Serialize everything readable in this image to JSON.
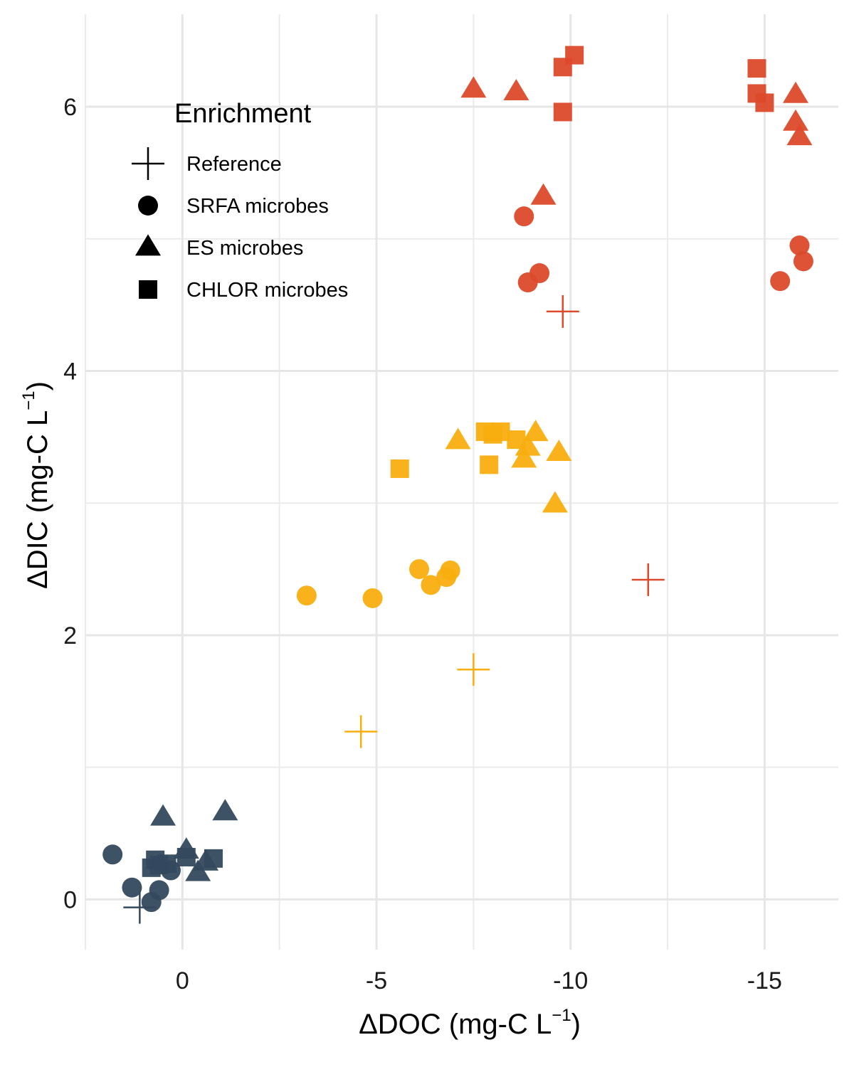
{
  "chart_data": {
    "type": "scatter",
    "xlabel": "ΔDOC (mg-C L",
    "xlabel_superscript": "−1",
    "xlabel_suffix": ")",
    "ylabel": "ΔDIC (mg-C L",
    "ylabel_superscript": "−1",
    "ylabel_suffix": ")",
    "x_axis_reversed": true,
    "xlim": [
      2.5,
      -16.9
    ],
    "ylim": [
      -0.38,
      6.7
    ],
    "x_ticks": [
      0,
      -5,
      -10,
      -15
    ],
    "x_tick_labels": [
      "0",
      "-5",
      "-10",
      "-15"
    ],
    "y_ticks": [
      0,
      2,
      4,
      6
    ],
    "y_tick_labels": [
      "0",
      "2",
      "4",
      "6"
    ],
    "grid": true,
    "legend": {
      "title": "Enrichment",
      "placement": "top-left",
      "entries": [
        {
          "label": "Reference",
          "shape": "cross"
        },
        {
          "label": "SRFA microbes",
          "shape": "circle"
        },
        {
          "label": "ES microbes",
          "shape": "triangle"
        },
        {
          "label": "CHLOR microbes",
          "shape": "square"
        }
      ]
    },
    "group_colors": {
      "dark": "#34495e",
      "yellow": "#f9ae0f",
      "red": "#dc4a2b"
    },
    "points": [
      {
        "x": 1.8,
        "y": 0.34,
        "shape": "circle",
        "color": "dark"
      },
      {
        "x": 1.3,
        "y": 0.09,
        "shape": "circle",
        "color": "dark"
      },
      {
        "x": 0.8,
        "y": -0.02,
        "shape": "circle",
        "color": "dark"
      },
      {
        "x": 0.6,
        "y": 0.07,
        "shape": "circle",
        "color": "dark"
      },
      {
        "x": 0.3,
        "y": 0.22,
        "shape": "circle",
        "color": "dark"
      },
      {
        "x": 1.1,
        "y": -0.06,
        "shape": "cross",
        "color": "dark"
      },
      {
        "x": 0.5,
        "y": 0.62,
        "shape": "triangle",
        "color": "dark"
      },
      {
        "x": -1.1,
        "y": 0.66,
        "shape": "triangle",
        "color": "dark"
      },
      {
        "x": -0.1,
        "y": 0.37,
        "shape": "triangle",
        "color": "dark"
      },
      {
        "x": -0.6,
        "y": 0.28,
        "shape": "triangle",
        "color": "dark"
      },
      {
        "x": -0.4,
        "y": 0.2,
        "shape": "triangle",
        "color": "dark"
      },
      {
        "x": 0.8,
        "y": 0.24,
        "shape": "square",
        "color": "dark"
      },
      {
        "x": 0.7,
        "y": 0.3,
        "shape": "square",
        "color": "dark"
      },
      {
        "x": 0.6,
        "y": 0.26,
        "shape": "square",
        "color": "dark"
      },
      {
        "x": 0.4,
        "y": 0.27,
        "shape": "square",
        "color": "dark"
      },
      {
        "x": -0.1,
        "y": 0.32,
        "shape": "square",
        "color": "dark"
      },
      {
        "x": -0.8,
        "y": 0.31,
        "shape": "square",
        "color": "dark"
      },
      {
        "x": -3.2,
        "y": 2.3,
        "shape": "circle",
        "color": "yellow"
      },
      {
        "x": -4.9,
        "y": 2.28,
        "shape": "circle",
        "color": "yellow"
      },
      {
        "x": -6.1,
        "y": 2.5,
        "shape": "circle",
        "color": "yellow"
      },
      {
        "x": -6.4,
        "y": 2.38,
        "shape": "circle",
        "color": "yellow"
      },
      {
        "x": -6.8,
        "y": 2.44,
        "shape": "circle",
        "color": "yellow"
      },
      {
        "x": -6.9,
        "y": 2.49,
        "shape": "circle",
        "color": "yellow"
      },
      {
        "x": -4.6,
        "y": 1.27,
        "shape": "cross",
        "color": "yellow"
      },
      {
        "x": -7.5,
        "y": 1.74,
        "shape": "cross",
        "color": "yellow"
      },
      {
        "x": -7.1,
        "y": 3.47,
        "shape": "triangle",
        "color": "yellow"
      },
      {
        "x": -9.1,
        "y": 3.53,
        "shape": "triangle",
        "color": "yellow"
      },
      {
        "x": -8.9,
        "y": 3.42,
        "shape": "triangle",
        "color": "yellow"
      },
      {
        "x": -8.8,
        "y": 3.33,
        "shape": "triangle",
        "color": "yellow"
      },
      {
        "x": -9.7,
        "y": 3.38,
        "shape": "triangle",
        "color": "yellow"
      },
      {
        "x": -9.6,
        "y": 2.99,
        "shape": "triangle",
        "color": "yellow"
      },
      {
        "x": -5.6,
        "y": 3.26,
        "shape": "square",
        "color": "yellow"
      },
      {
        "x": -7.8,
        "y": 3.54,
        "shape": "square",
        "color": "yellow"
      },
      {
        "x": -8.0,
        "y": 3.52,
        "shape": "square",
        "color": "yellow"
      },
      {
        "x": -8.2,
        "y": 3.54,
        "shape": "square",
        "color": "yellow"
      },
      {
        "x": -8.6,
        "y": 3.48,
        "shape": "square",
        "color": "yellow"
      },
      {
        "x": -7.9,
        "y": 3.29,
        "shape": "square",
        "color": "yellow"
      },
      {
        "x": -8.8,
        "y": 5.17,
        "shape": "circle",
        "color": "red"
      },
      {
        "x": -8.9,
        "y": 4.67,
        "shape": "circle",
        "color": "red"
      },
      {
        "x": -9.2,
        "y": 4.74,
        "shape": "circle",
        "color": "red"
      },
      {
        "x": -15.4,
        "y": 4.68,
        "shape": "circle",
        "color": "red"
      },
      {
        "x": -15.9,
        "y": 4.95,
        "shape": "circle",
        "color": "red"
      },
      {
        "x": -16.0,
        "y": 4.83,
        "shape": "circle",
        "color": "red"
      },
      {
        "x": -9.8,
        "y": 4.45,
        "shape": "cross",
        "color": "red"
      },
      {
        "x": -12.0,
        "y": 2.42,
        "shape": "cross",
        "color": "red"
      },
      {
        "x": -7.5,
        "y": 6.13,
        "shape": "triangle",
        "color": "red"
      },
      {
        "x": -8.6,
        "y": 6.11,
        "shape": "triangle",
        "color": "red"
      },
      {
        "x": -9.3,
        "y": 5.32,
        "shape": "triangle",
        "color": "red"
      },
      {
        "x": -15.8,
        "y": 6.09,
        "shape": "triangle",
        "color": "red"
      },
      {
        "x": -15.8,
        "y": 5.88,
        "shape": "triangle",
        "color": "red"
      },
      {
        "x": -15.9,
        "y": 5.77,
        "shape": "triangle",
        "color": "red"
      },
      {
        "x": -9.8,
        "y": 5.96,
        "shape": "square",
        "color": "red"
      },
      {
        "x": -9.8,
        "y": 6.3,
        "shape": "square",
        "color": "red"
      },
      {
        "x": -10.1,
        "y": 6.39,
        "shape": "square",
        "color": "red"
      },
      {
        "x": -14.8,
        "y": 6.29,
        "shape": "square",
        "color": "red"
      },
      {
        "x": -14.8,
        "y": 6.1,
        "shape": "square",
        "color": "red"
      },
      {
        "x": -15.0,
        "y": 6.03,
        "shape": "square",
        "color": "red"
      }
    ]
  }
}
